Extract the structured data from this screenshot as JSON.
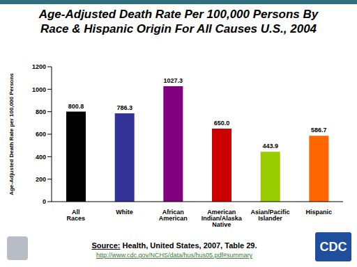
{
  "chart_data": {
    "type": "bar",
    "title": "Age-Adjusted Death Rate Per 100,000 Persons By Race & Hispanic Origin For All Causes U.S., 2004",
    "y_label": "Age-Adjusted Death Rate per 100,000 Persons",
    "categories": [
      "All Races",
      "White",
      "African American",
      "American Indian/Alaska Native",
      "Asian/Pacific Islander",
      "Hispanic"
    ],
    "values": [
      800.8,
      786.3,
      1027.3,
      650.0,
      443.9,
      586.7
    ],
    "value_labels": [
      "800.8",
      "786.3",
      "1027.3",
      "650.0",
      "443.9",
      "586.7"
    ],
    "colors": [
      "#000000",
      "#333399",
      "#800080",
      "#cc0000",
      "#99cc00",
      "#ff6600"
    ],
    "ylim": [
      0,
      1200
    ],
    "yticks": [
      0,
      200,
      400,
      600,
      800,
      1000,
      1200
    ],
    "grid": false,
    "data_labels": true,
    "source_label": "Source:",
    "source": "Health, United States, 2007, Table 29.",
    "url": "http://www.cdc.gov/NCHS/data/hus/hus05.pdf#summary",
    "logo_text": "CDC"
  }
}
